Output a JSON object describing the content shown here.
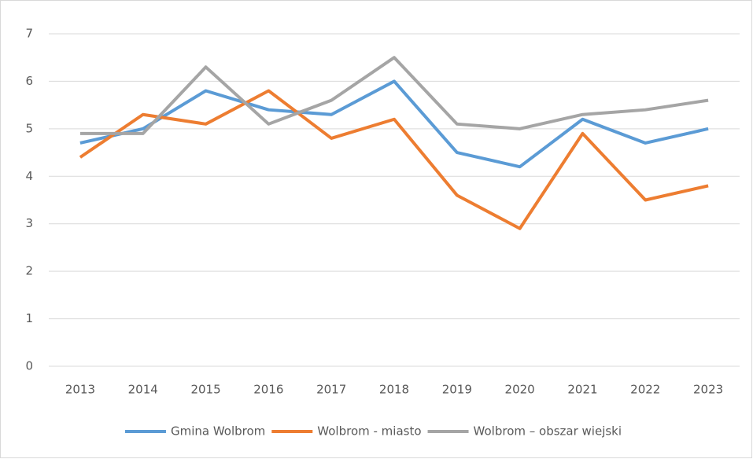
{
  "chart_data": {
    "type": "line",
    "categories": [
      "2013",
      "2014",
      "2015",
      "2016",
      "2017",
      "2018",
      "2019",
      "2020",
      "2021",
      "2022",
      "2023"
    ],
    "series": [
      {
        "name": "Gmina Wolbrom",
        "color": "#5b9bd5",
        "values": [
          4.7,
          5.0,
          5.8,
          5.4,
          5.3,
          6.0,
          4.5,
          4.2,
          5.2,
          4.7,
          5.0
        ]
      },
      {
        "name": "Wolbrom - miasto",
        "color": "#ed7d31",
        "values": [
          4.4,
          5.3,
          5.1,
          5.8,
          4.8,
          5.2,
          3.6,
          2.9,
          4.9,
          3.5,
          3.8
        ]
      },
      {
        "name": "Wolbrom – obszar wiejski",
        "color": "#a5a5a5",
        "values": [
          4.9,
          4.9,
          6.3,
          5.1,
          5.6,
          6.5,
          5.1,
          5.0,
          5.3,
          5.4,
          5.6
        ]
      }
    ],
    "ylim": [
      0,
      7
    ],
    "yticks": [
      0,
      1,
      2,
      3,
      4,
      5,
      6,
      7
    ],
    "grid": true,
    "legend": "bottom"
  }
}
